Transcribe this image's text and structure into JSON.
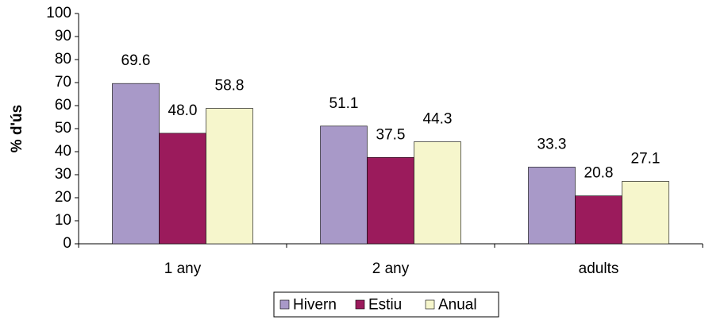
{
  "chart_data": {
    "type": "bar",
    "y_label": "% d'ús",
    "categories": [
      "1 any",
      "2 any",
      "adults"
    ],
    "series": [
      {
        "name": "Hivern",
        "color": "#a899c8",
        "values": [
          69.6,
          51.1,
          33.3
        ],
        "value_labels": [
          "69.6",
          "51.1",
          "33.3"
        ]
      },
      {
        "name": "Estiu",
        "color": "#9b1b5c",
        "values": [
          48.0,
          37.5,
          20.8
        ],
        "value_labels": [
          "48.0",
          "37.5",
          "20.8"
        ]
      },
      {
        "name": "Anual",
        "color": "#f6f6cc",
        "values": [
          58.8,
          44.3,
          27.1
        ],
        "value_labels": [
          "58.8",
          "44.3",
          "27.1"
        ]
      }
    ],
    "ylim": [
      0,
      100
    ],
    "yticks": [
      0,
      10,
      20,
      30,
      40,
      50,
      60,
      70,
      80,
      90,
      100
    ],
    "legend": "bottom"
  }
}
